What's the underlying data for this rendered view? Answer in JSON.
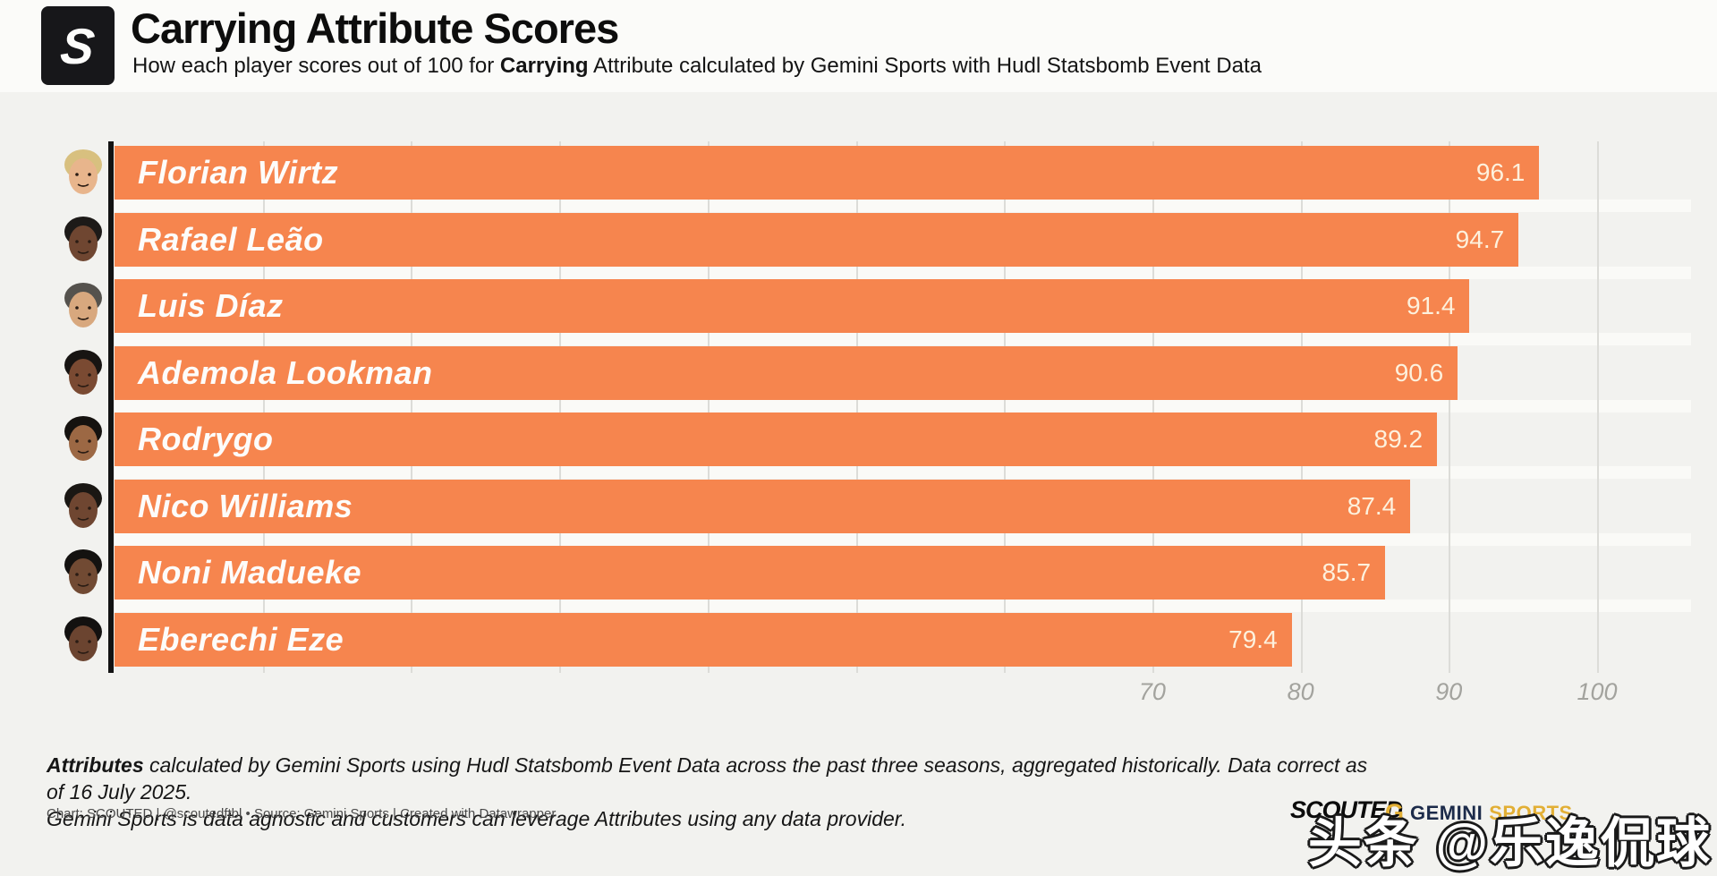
{
  "header": {
    "logo_letter": "S",
    "title": "Carrying Attribute Scores",
    "subtitle": {
      "pre": "How each player scores out of 100 for ",
      "bold": "Carrying",
      "post": " Attribute calculated by Gemini Sports with Hudl Statsbomb Event Data"
    }
  },
  "chart_data": {
    "type": "bar",
    "orientation": "horizontal",
    "title": "Carrying Attribute Scores",
    "categories": [
      "Florian Wirtz",
      "Rafael Leão",
      "Luis Díaz",
      "Ademola Lookman",
      "Rodrygo",
      "Nico Williams",
      "Noni Madueke",
      "Eberechi Eze"
    ],
    "values": [
      96.1,
      94.7,
      91.4,
      90.6,
      89.2,
      87.4,
      85.7,
      79.4
    ],
    "xlim": [
      0,
      106
    ],
    "x_ticks": [
      70,
      80,
      90,
      100
    ],
    "grid": true,
    "gridline_step": 10,
    "bar_color": "#f6854e",
    "value_label_color": "#fdf1dd",
    "name_label_color": "#fdfcfa",
    "axis_label_color": "#a3a39e",
    "legend": "none"
  },
  "avatars": [
    {
      "skin": "#e8b58c",
      "hair": "#d8c07f"
    },
    {
      "skin": "#6f4631",
      "hair": "#1d1a18"
    },
    {
      "skin": "#d8a87e",
      "hair": "#55524d"
    },
    {
      "skin": "#7a4a32",
      "hair": "#171412"
    },
    {
      "skin": "#9c6844",
      "hair": "#15120f"
    },
    {
      "skin": "#6f4631",
      "hair": "#1a1713"
    },
    {
      "skin": "#714a33",
      "hair": "#141210"
    },
    {
      "skin": "#6b4430",
      "hair": "#131110"
    }
  ],
  "footer": {
    "note_bold": "Attributes",
    "note_rest": " calculated by Gemini Sports using Hudl Statsbomb Event Data across the past three seasons, aggregated historically. Data correct as of 16 July 2025.",
    "note_line2": "Gemini Sports is data agnostic and customers can leverage Attributes using any data provider.",
    "credit": "Chart: SCOUTED | @scoutedftbl • Source: Gemini Sports | Created with Datawrapper"
  },
  "logos": {
    "scouted": "SCOUTED",
    "gemini_g": "G",
    "gemini_word": "GEMINI",
    "sports_word": "SPORTS",
    "gold": "#e2af35",
    "navy": "#1c2b4a"
  },
  "watermark": "头条 @乐逸侃球"
}
